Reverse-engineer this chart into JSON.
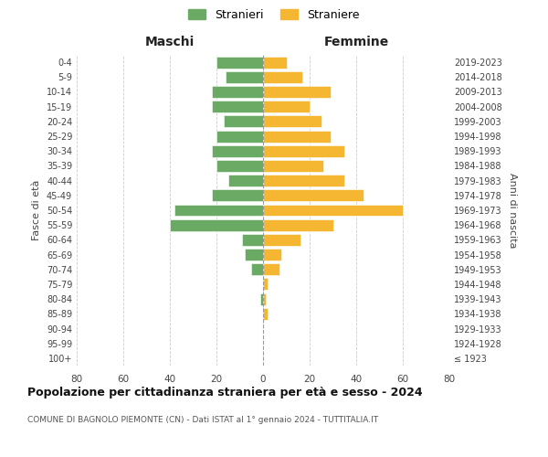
{
  "age_groups": [
    "100+",
    "95-99",
    "90-94",
    "85-89",
    "80-84",
    "75-79",
    "70-74",
    "65-69",
    "60-64",
    "55-59",
    "50-54",
    "45-49",
    "40-44",
    "35-39",
    "30-34",
    "25-29",
    "20-24",
    "15-19",
    "10-14",
    "5-9",
    "0-4"
  ],
  "birth_years": [
    "≤ 1923",
    "1924-1928",
    "1929-1933",
    "1934-1938",
    "1939-1943",
    "1944-1948",
    "1949-1953",
    "1954-1958",
    "1959-1963",
    "1964-1968",
    "1969-1973",
    "1974-1978",
    "1979-1983",
    "1984-1988",
    "1989-1993",
    "1994-1998",
    "1999-2003",
    "2004-2008",
    "2009-2013",
    "2014-2018",
    "2019-2023"
  ],
  "maschi": [
    0,
    0,
    0,
    0,
    1,
    0,
    5,
    8,
    9,
    40,
    38,
    22,
    15,
    20,
    22,
    20,
    17,
    22,
    22,
    16,
    20
  ],
  "femmine": [
    0,
    0,
    0,
    2,
    1,
    2,
    7,
    8,
    16,
    30,
    60,
    43,
    35,
    26,
    35,
    29,
    25,
    20,
    29,
    17,
    10
  ],
  "color_maschi": "#6aaa64",
  "color_femmine": "#f5b731",
  "title": "Popolazione per cittadinanza straniera per età e sesso - 2024",
  "subtitle": "COMUNE DI BAGNOLO PIEMONTE (CN) - Dati ISTAT al 1° gennaio 2024 - TUTTITALIA.IT",
  "xlabel_left": "Maschi",
  "xlabel_right": "Femmine",
  "ylabel_left": "Fasce di età",
  "ylabel_right": "Anni di nascita",
  "legend_maschi": "Stranieri",
  "legend_femmine": "Straniere",
  "xlim": 80,
  "background_color": "#ffffff",
  "grid_color": "#cccccc"
}
